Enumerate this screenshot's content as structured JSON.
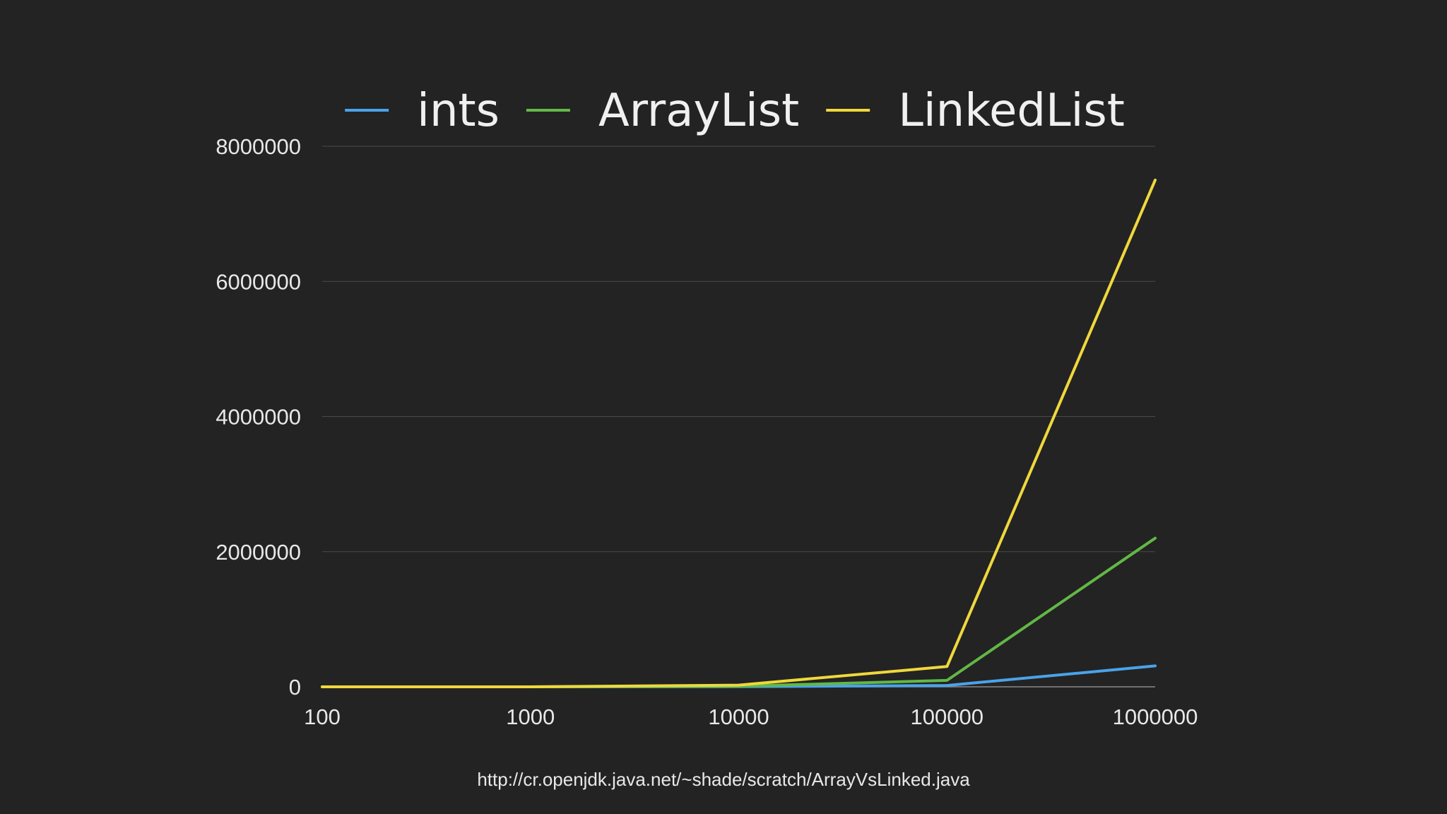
{
  "chart_data": {
    "type": "line",
    "x": [
      100,
      1000,
      10000,
      100000,
      1000000
    ],
    "x_tick_labels": [
      "100",
      "1000",
      "10000",
      "100000",
      "1000000"
    ],
    "x_scale": "log",
    "y_ticks": [
      0,
      2000000,
      4000000,
      6000000,
      8000000
    ],
    "y_tick_labels": [
      "0",
      "2000000",
      "4000000",
      "6000000",
      "8000000"
    ],
    "ylim": [
      0,
      8000000
    ],
    "grid": "horizontal",
    "legend_position": "top",
    "series": [
      {
        "name": "ints",
        "color": "#4aa3e8",
        "values": [
          0,
          0,
          2000,
          20000,
          310000
        ]
      },
      {
        "name": "ArrayList",
        "color": "#62b846",
        "values": [
          0,
          0,
          8000,
          95000,
          2200000
        ]
      },
      {
        "name": "LinkedList",
        "color": "#efd83c",
        "values": [
          0,
          0,
          25000,
          300000,
          7500000
        ]
      }
    ]
  },
  "footer": {
    "source": "http://cr.openjdk.java.net/~shade/scratch/ArrayVsLinked.java"
  }
}
